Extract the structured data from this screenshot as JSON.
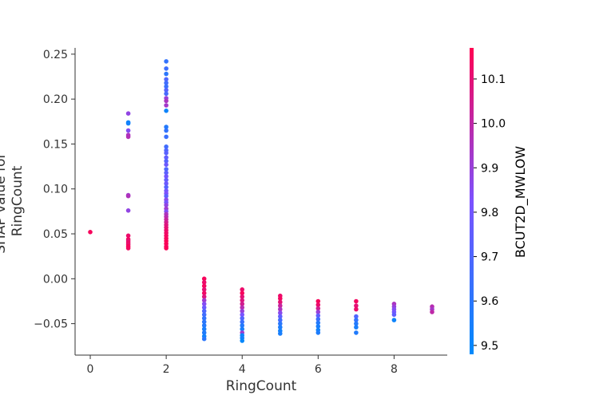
{
  "chart_data": {
    "type": "scatter",
    "xlabel": "RingCount",
    "ylabel_lines": [
      "SHAP value for",
      "RingCount"
    ],
    "xlim": [
      -0.4,
      9.4
    ],
    "ylim": [
      -0.085,
      0.257
    ],
    "xticks": [
      0,
      2,
      4,
      6,
      8
    ],
    "yticks": [
      -0.05,
      0.0,
      0.05,
      0.1,
      0.15,
      0.2,
      0.25
    ],
    "ytick_labels": [
      "−0.05",
      "0.00",
      "0.05",
      "0.10",
      "0.15",
      "0.20",
      "0.25"
    ],
    "colorbar": {
      "label": "BCUT2D_MWLOW",
      "min": 9.48,
      "max": 10.17,
      "ticks": [
        9.5,
        9.6,
        9.7,
        9.8,
        9.9,
        10.0,
        10.1
      ],
      "tick_labels": [
        "9.5",
        "9.6",
        "9.7",
        "9.8",
        "9.9",
        "10.0",
        "10.1"
      ],
      "low_color": "#008afb",
      "mid_color": "#7c52ff",
      "high_color": "#ff0052"
    },
    "points": [
      [
        0,
        0.052,
        10.15
      ],
      [
        1,
        0.184,
        9.88
      ],
      [
        1,
        0.174,
        9.52
      ],
      [
        1,
        0.173,
        9.53
      ],
      [
        1,
        0.165,
        9.85
      ],
      [
        1,
        0.16,
        9.95
      ],
      [
        1,
        0.158,
        9.97
      ],
      [
        1,
        0.093,
        9.92
      ],
      [
        1,
        0.092,
        9.96
      ],
      [
        1,
        0.076,
        9.88
      ],
      [
        1,
        0.048,
        10.12
      ],
      [
        1,
        0.044,
        10.14
      ],
      [
        1,
        0.042,
        10.1
      ],
      [
        1,
        0.04,
        10.13
      ],
      [
        1,
        0.038,
        10.11
      ],
      [
        1,
        0.036,
        10.16
      ],
      [
        1,
        0.034,
        10.14
      ],
      [
        2,
        0.242,
        9.62
      ],
      [
        2,
        0.234,
        9.65
      ],
      [
        2,
        0.228,
        9.6
      ],
      [
        2,
        0.222,
        9.7
      ],
      [
        2,
        0.218,
        9.66
      ],
      [
        2,
        0.214,
        9.64
      ],
      [
        2,
        0.21,
        9.72
      ],
      [
        2,
        0.206,
        9.68
      ],
      [
        2,
        0.201,
        9.9
      ],
      [
        2,
        0.198,
        9.95
      ],
      [
        2,
        0.193,
        9.93
      ],
      [
        2,
        0.187,
        9.52
      ],
      [
        2,
        0.169,
        9.58
      ],
      [
        2,
        0.165,
        9.62
      ],
      [
        2,
        0.158,
        9.64
      ],
      [
        2,
        0.147,
        9.66
      ],
      [
        2,
        0.143,
        9.7
      ],
      [
        2,
        0.14,
        9.73
      ],
      [
        2,
        0.135,
        9.75
      ],
      [
        2,
        0.131,
        9.72
      ],
      [
        2,
        0.127,
        9.78
      ],
      [
        2,
        0.122,
        9.7
      ],
      [
        2,
        0.118,
        9.74
      ],
      [
        2,
        0.114,
        9.8
      ],
      [
        2,
        0.11,
        9.76
      ],
      [
        2,
        0.106,
        9.78
      ],
      [
        2,
        0.102,
        9.72
      ],
      [
        2,
        0.098,
        9.8
      ],
      [
        2,
        0.095,
        9.83
      ],
      [
        2,
        0.092,
        9.74
      ],
      [
        2,
        0.088,
        9.86
      ],
      [
        2,
        0.085,
        9.81
      ],
      [
        2,
        0.082,
        9.88
      ],
      [
        2,
        0.078,
        9.92
      ],
      [
        2,
        0.075,
        9.84
      ],
      [
        2,
        0.072,
        9.95
      ],
      [
        2,
        0.069,
        9.98
      ],
      [
        2,
        0.066,
        10.02
      ],
      [
        2,
        0.063,
        10.05
      ],
      [
        2,
        0.06,
        10.08
      ],
      [
        2,
        0.057,
        10.1
      ],
      [
        2,
        0.054,
        10.12
      ],
      [
        2,
        0.051,
        10.13
      ],
      [
        2,
        0.048,
        10.14
      ],
      [
        2,
        0.045,
        10.15
      ],
      [
        2,
        0.042,
        10.16
      ],
      [
        2,
        0.039,
        10.16
      ],
      [
        2,
        0.036,
        10.15
      ],
      [
        2,
        0.034,
        10.16
      ],
      [
        3,
        0.0,
        10.15
      ],
      [
        3,
        -0.004,
        10.12
      ],
      [
        3,
        -0.008,
        10.14
      ],
      [
        3,
        -0.012,
        10.1
      ],
      [
        3,
        -0.016,
        10.13
      ],
      [
        3,
        -0.02,
        10.08
      ],
      [
        3,
        -0.024,
        9.92
      ],
      [
        3,
        -0.028,
        9.85
      ],
      [
        3,
        -0.032,
        9.78
      ],
      [
        3,
        -0.036,
        9.7
      ],
      [
        3,
        -0.04,
        9.66
      ],
      [
        3,
        -0.044,
        9.62
      ],
      [
        3,
        -0.048,
        9.6
      ],
      [
        3,
        -0.052,
        9.58
      ],
      [
        3,
        -0.056,
        9.55
      ],
      [
        3,
        -0.06,
        9.57
      ],
      [
        3,
        -0.064,
        9.53
      ],
      [
        3,
        -0.067,
        9.6
      ],
      [
        4,
        -0.012,
        10.12
      ],
      [
        4,
        -0.016,
        10.15
      ],
      [
        4,
        -0.02,
        10.1
      ],
      [
        4,
        -0.024,
        10.08
      ],
      [
        4,
        -0.028,
        10.05
      ],
      [
        4,
        -0.032,
        9.98
      ],
      [
        4,
        -0.036,
        9.9
      ],
      [
        4,
        -0.04,
        9.82
      ],
      [
        4,
        -0.044,
        9.72
      ],
      [
        4,
        -0.048,
        9.64
      ],
      [
        4,
        -0.052,
        9.58
      ],
      [
        4,
        -0.056,
        9.55
      ],
      [
        4,
        -0.06,
        9.92
      ],
      [
        4,
        -0.063,
        9.52
      ],
      [
        4,
        -0.066,
        9.54
      ],
      [
        4,
        -0.069,
        9.5
      ],
      [
        5,
        -0.019,
        10.12
      ],
      [
        5,
        -0.022,
        10.14
      ],
      [
        5,
        -0.026,
        10.1
      ],
      [
        5,
        -0.03,
        10.02
      ],
      [
        5,
        -0.034,
        9.95
      ],
      [
        5,
        -0.038,
        9.86
      ],
      [
        5,
        -0.042,
        9.75
      ],
      [
        5,
        -0.046,
        9.66
      ],
      [
        5,
        -0.05,
        9.6
      ],
      [
        5,
        -0.054,
        9.56
      ],
      [
        5,
        -0.058,
        9.53
      ],
      [
        5,
        -0.061,
        9.55
      ],
      [
        6,
        -0.025,
        10.15
      ],
      [
        6,
        -0.029,
        10.12
      ],
      [
        6,
        -0.033,
        10.05
      ],
      [
        6,
        -0.037,
        9.9
      ],
      [
        6,
        -0.041,
        9.75
      ],
      [
        6,
        -0.045,
        9.65
      ],
      [
        6,
        -0.049,
        9.58
      ],
      [
        6,
        -0.053,
        9.55
      ],
      [
        6,
        -0.057,
        9.53
      ],
      [
        6,
        -0.06,
        9.56
      ],
      [
        7,
        -0.025,
        10.14
      ],
      [
        7,
        -0.03,
        10.1
      ],
      [
        7,
        -0.034,
        10.12
      ],
      [
        7,
        -0.042,
        9.7
      ],
      [
        7,
        -0.046,
        9.62
      ],
      [
        7,
        -0.05,
        9.58
      ],
      [
        7,
        -0.054,
        9.55
      ],
      [
        7,
        -0.06,
        9.57
      ],
      [
        8,
        -0.028,
        9.95
      ],
      [
        8,
        -0.031,
        9.9
      ],
      [
        8,
        -0.034,
        9.85
      ],
      [
        8,
        -0.037,
        9.8
      ],
      [
        8,
        -0.04,
        9.75
      ],
      [
        8,
        -0.046,
        9.52
      ],
      [
        9,
        -0.031,
        9.98
      ],
      [
        9,
        -0.034,
        9.93
      ],
      [
        9,
        -0.037,
        10.0
      ]
    ]
  }
}
